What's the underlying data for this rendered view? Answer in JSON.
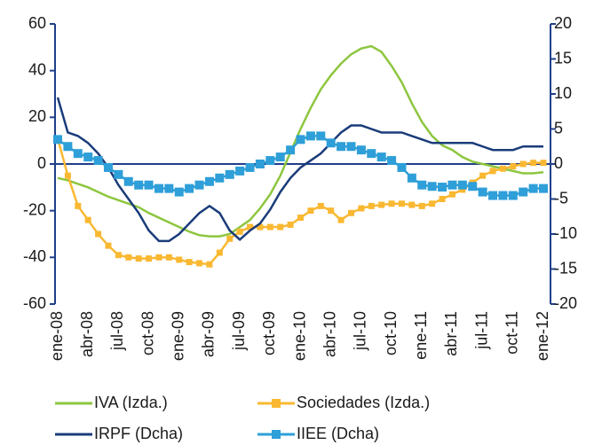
{
  "chart_data": {
    "type": "line",
    "categories": [
      "ene-08",
      null,
      null,
      "abr-08",
      null,
      null,
      "jul-08",
      null,
      null,
      "oct-08",
      null,
      null,
      "ene-09",
      null,
      null,
      "abr-09",
      null,
      null,
      "jul-09",
      null,
      null,
      "oct-09",
      null,
      null,
      "ene-10",
      null,
      null,
      "abr-10",
      null,
      null,
      "jul-10",
      null,
      null,
      "oct-10",
      null,
      null,
      "ene-11",
      null,
      null,
      "abr-11",
      null,
      null,
      "jul-11",
      null,
      null,
      "oct-11",
      null,
      null,
      "ene-12"
    ],
    "ylim": [
      -60,
      60
    ],
    "yticks": [
      -60,
      -40,
      -20,
      0,
      20,
      40,
      60
    ],
    "y2lim": [
      -20,
      20
    ],
    "y2ticks": [
      -20,
      -15,
      -10,
      -5,
      0,
      5,
      10,
      15,
      20
    ],
    "legend": "bottom",
    "series": [
      {
        "name": "IVA (Izda.)",
        "color": "#8dc63f",
        "values": [
          -6,
          -7,
          -8.5,
          -10,
          -12,
          -14,
          -15.5,
          -17,
          -18.5,
          -21,
          -23,
          -25,
          -27,
          -29,
          -30.5,
          -31,
          -31,
          -30,
          -27,
          -24,
          -19,
          -13,
          -5,
          5,
          15,
          24,
          32,
          38,
          43,
          47,
          49.5,
          50.5,
          48,
          42,
          35,
          26,
          18,
          12,
          8,
          6,
          3,
          1,
          0,
          -1,
          -2,
          -3,
          -4,
          -4,
          -3.5
        ]
      },
      {
        "name": "Sociedades (Izda.)",
        "color": "#f9b832",
        "marker": "square",
        "values": [
          11,
          -5,
          -18,
          -24,
          -30,
          -35,
          -39,
          -40,
          -40.5,
          -40.5,
          -40,
          -40,
          -41,
          -42,
          -42.5,
          -43,
          -38,
          -32,
          -29,
          -27,
          -27,
          -27,
          -27,
          -26,
          -23,
          -20,
          -18,
          -20,
          -24,
          -21,
          -19,
          -18,
          -17.5,
          -17,
          -17,
          -17.5,
          -18,
          -17,
          -15,
          -13,
          -11,
          -8,
          -5,
          -3,
          -2,
          -1,
          0,
          0.5,
          0.5
        ]
      },
      {
        "name": "IRPF (Dcha)",
        "color": "#1a3c7a",
        "axis": "y2",
        "values": [
          9.5,
          4.5,
          4,
          3,
          1.5,
          -0.5,
          -3,
          -5,
          -7,
          -9.5,
          -11,
          -11,
          -10,
          -8.5,
          -7,
          -6,
          -7,
          -9.5,
          -10.8,
          -9.5,
          -8.5,
          -6.5,
          -4,
          -2,
          -0.5,
          0.5,
          1.5,
          3,
          4.5,
          5.5,
          5.5,
          5,
          4.5,
          4.5,
          4.5,
          4,
          3.5,
          3,
          3,
          3,
          3,
          3,
          2.5,
          2,
          2,
          2,
          2.5,
          2.5,
          2.5
        ]
      },
      {
        "name": "IIEE (Dcha)",
        "color": "#2e9fd8",
        "axis": "y2",
        "marker": "square",
        "values": [
          3.5,
          2.5,
          1.5,
          1,
          0.5,
          -0.5,
          -1.5,
          -2.5,
          -3,
          -3,
          -3.5,
          -3.5,
          -4,
          -3.5,
          -3,
          -2.5,
          -2,
          -1.5,
          -1,
          -0.5,
          0,
          0.5,
          1,
          2,
          3.5,
          4,
          4,
          3,
          2.5,
          2.5,
          2,
          1.5,
          1,
          0.5,
          -0.5,
          -2,
          -3,
          -3.2,
          -3.3,
          -3,
          -3,
          -3.2,
          -4,
          -4.5,
          -4.5,
          -4.5,
          -4,
          -3.5,
          -3.5
        ]
      }
    ]
  }
}
